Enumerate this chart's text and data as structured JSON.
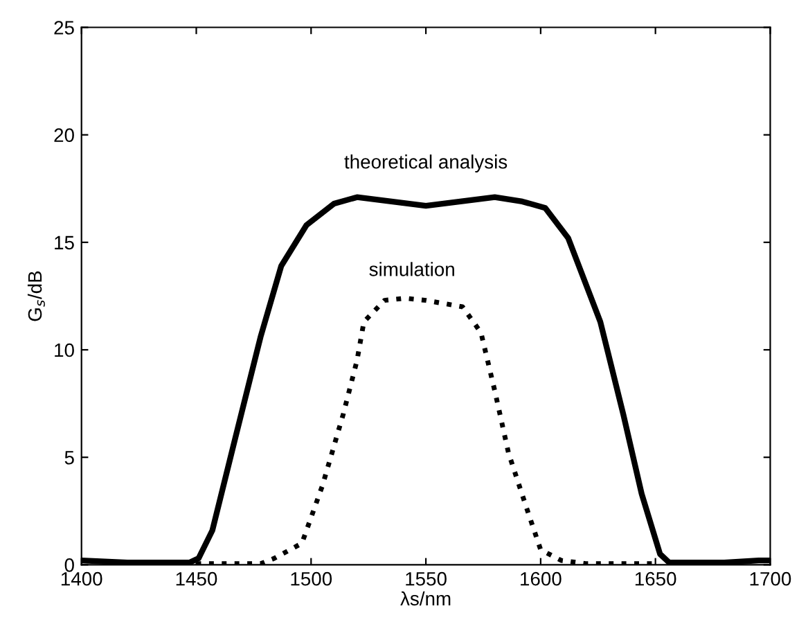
{
  "chart_data": {
    "type": "line",
    "xlabel": "λs/nm",
    "ylabel": "G$_{s}$/dB",
    "xlim": [
      1400,
      1700
    ],
    "ylim": [
      0,
      25
    ],
    "xticks": [
      1400,
      1450,
      1500,
      1550,
      1600,
      1650,
      1700
    ],
    "yticks": [
      0,
      5,
      10,
      15,
      20,
      25
    ],
    "grid": false,
    "marker": "none",
    "series": [
      {
        "color": "#000000",
        "line_style": "solid",
        "x": [
          1400,
          1420,
          1440,
          1447,
          1451,
          1457,
          1467,
          1478,
          1487,
          1498,
          1510,
          1520,
          1535,
          1550,
          1565,
          1580,
          1592,
          1602,
          1612,
          1626,
          1636,
          1644,
          1652,
          1656,
          1680,
          1695,
          1700
        ],
        "values": [
          0.2,
          0.1,
          0.1,
          0.1,
          0.3,
          1.6,
          5.9,
          10.6,
          13.9,
          15.8,
          16.8,
          17.1,
          16.9,
          16.7,
          16.9,
          17.1,
          16.9,
          16.6,
          15.2,
          11.3,
          7.0,
          3.3,
          0.5,
          0.1,
          0.1,
          0.2,
          0.2
        ]
      },
      {
        "color": "#000000",
        "line_style": "dotted",
        "x": [
          1450,
          1478,
          1484,
          1496,
          1505,
          1514,
          1520,
          1523,
          1532,
          1541,
          1550,
          1566,
          1574,
          1580,
          1586,
          1594,
          1600,
          1609,
          1620,
          1650
        ],
        "values": [
          0.05,
          0.05,
          0.3,
          1.0,
          3.7,
          7.0,
          9.5,
          11.3,
          12.3,
          12.4,
          12.3,
          12.0,
          10.8,
          8.1,
          5.2,
          2.6,
          0.7,
          0.2,
          0.05,
          0.05
        ]
      }
    ],
    "annotations": [
      "theoretical analysis",
      "simulation"
    ]
  }
}
